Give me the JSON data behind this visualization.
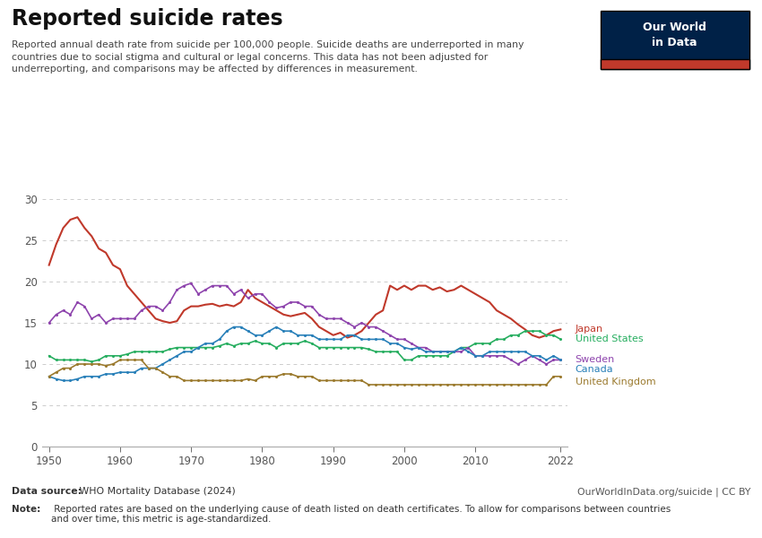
{
  "title": "Reported suicide rates",
  "subtitle": "Reported annual death rate from suicide per 100,000 people. Suicide deaths are underreported in many\ncountries due to social stigma and cultural or legal concerns. This data has not been adjusted for\nunderreporting, and comparisons may be affected by differences in measurement.",
  "note_bold": "Note:",
  "note_rest": " Reported rates are based on the underlying cause of death listed on death certificates. To allow for comparisons between countries\nand over time, this metric is age-standardized.",
  "source_bold": "Data source:",
  "source_rest": " WHO Mortality Database (2024)",
  "source_right": "OurWorldInData.org/suicide | CC BY",
  "ylim": [
    0,
    30
  ],
  "yticks": [
    0,
    5,
    10,
    15,
    20,
    25,
    30
  ],
  "xlim": [
    1949,
    2023
  ],
  "xticks": [
    1950,
    1960,
    1970,
    1980,
    1990,
    2000,
    2010,
    2022
  ],
  "background_color": "#ffffff",
  "grid_color": "#cccccc",
  "series": {
    "Japan": {
      "color": "#c0392b",
      "marker": false,
      "data": {
        "1950": 22.0,
        "1951": 24.5,
        "1952": 26.5,
        "1953": 27.5,
        "1954": 27.8,
        "1955": 26.5,
        "1956": 25.5,
        "1957": 24.0,
        "1958": 23.5,
        "1959": 22.0,
        "1960": 21.5,
        "1961": 19.5,
        "1962": 18.5,
        "1963": 17.5,
        "1964": 16.5,
        "1965": 15.5,
        "1966": 15.2,
        "1967": 15.0,
        "1968": 15.2,
        "1969": 16.5,
        "1970": 17.0,
        "1971": 17.0,
        "1972": 17.2,
        "1973": 17.3,
        "1974": 17.0,
        "1975": 17.2,
        "1976": 17.0,
        "1977": 17.5,
        "1978": 19.0,
        "1979": 18.0,
        "1980": 17.5,
        "1981": 17.0,
        "1982": 16.5,
        "1983": 16.0,
        "1984": 15.8,
        "1985": 16.0,
        "1986": 16.2,
        "1987": 15.5,
        "1988": 14.5,
        "1989": 14.0,
        "1990": 13.5,
        "1991": 13.8,
        "1992": 13.2,
        "1993": 13.5,
        "1994": 14.0,
        "1995": 15.0,
        "1996": 16.0,
        "1997": 16.5,
        "1998": 19.5,
        "1999": 19.0,
        "2000": 19.5,
        "2001": 19.0,
        "2002": 19.5,
        "2003": 19.5,
        "2004": 19.0,
        "2005": 19.3,
        "2006": 18.8,
        "2007": 19.0,
        "2008": 19.5,
        "2009": 19.0,
        "2010": 18.5,
        "2011": 18.0,
        "2012": 17.5,
        "2013": 16.5,
        "2014": 16.0,
        "2015": 15.5,
        "2016": 14.8,
        "2017": 14.2,
        "2018": 13.5,
        "2019": 13.2,
        "2020": 13.5,
        "2021": 14.0,
        "2022": 14.2
      }
    },
    "United States": {
      "color": "#27ae60",
      "marker": true,
      "data": {
        "1950": 11.0,
        "1951": 10.5,
        "1952": 10.5,
        "1953": 10.5,
        "1954": 10.5,
        "1955": 10.5,
        "1956": 10.3,
        "1957": 10.5,
        "1958": 11.0,
        "1959": 11.0,
        "1960": 11.0,
        "1961": 11.2,
        "1962": 11.5,
        "1963": 11.5,
        "1964": 11.5,
        "1965": 11.5,
        "1966": 11.5,
        "1967": 11.8,
        "1968": 12.0,
        "1969": 12.0,
        "1970": 12.0,
        "1971": 12.0,
        "1972": 12.0,
        "1973": 12.0,
        "1974": 12.2,
        "1975": 12.5,
        "1976": 12.2,
        "1977": 12.5,
        "1978": 12.5,
        "1979": 12.8,
        "1980": 12.5,
        "1981": 12.5,
        "1982": 12.0,
        "1983": 12.5,
        "1984": 12.5,
        "1985": 12.5,
        "1986": 12.8,
        "1987": 12.5,
        "1988": 12.0,
        "1989": 12.0,
        "1990": 12.0,
        "1991": 12.0,
        "1992": 12.0,
        "1993": 12.0,
        "1994": 12.0,
        "1995": 11.8,
        "1996": 11.5,
        "1997": 11.5,
        "1998": 11.5,
        "1999": 11.5,
        "2000": 10.5,
        "2001": 10.5,
        "2002": 11.0,
        "2003": 11.0,
        "2004": 11.0,
        "2005": 11.0,
        "2006": 11.0,
        "2007": 11.5,
        "2008": 12.0,
        "2009": 12.0,
        "2010": 12.5,
        "2011": 12.5,
        "2012": 12.5,
        "2013": 13.0,
        "2014": 13.0,
        "2015": 13.5,
        "2016": 13.5,
        "2017": 14.0,
        "2018": 14.0,
        "2019": 14.0,
        "2020": 13.5,
        "2021": 13.5,
        "2022": 13.0
      }
    },
    "Sweden": {
      "color": "#8e44ad",
      "marker": true,
      "data": {
        "1950": 15.0,
        "1951": 16.0,
        "1952": 16.5,
        "1953": 16.0,
        "1954": 17.5,
        "1955": 17.0,
        "1956": 15.5,
        "1957": 16.0,
        "1958": 15.0,
        "1959": 15.5,
        "1960": 15.5,
        "1961": 15.5,
        "1962": 15.5,
        "1963": 16.5,
        "1964": 17.0,
        "1965": 17.0,
        "1966": 16.5,
        "1967": 17.5,
        "1968": 19.0,
        "1969": 19.5,
        "1970": 19.8,
        "1971": 18.5,
        "1972": 19.0,
        "1973": 19.5,
        "1974": 19.5,
        "1975": 19.5,
        "1976": 18.5,
        "1977": 19.0,
        "1978": 18.0,
        "1979": 18.5,
        "1980": 18.5,
        "1981": 17.5,
        "1982": 16.8,
        "1983": 17.0,
        "1984": 17.5,
        "1985": 17.5,
        "1986": 17.0,
        "1987": 17.0,
        "1988": 16.0,
        "1989": 15.5,
        "1990": 15.5,
        "1991": 15.5,
        "1992": 15.0,
        "1993": 14.5,
        "1994": 15.0,
        "1995": 14.5,
        "1996": 14.5,
        "1997": 14.0,
        "1998": 13.5,
        "1999": 13.0,
        "2000": 13.0,
        "2001": 12.5,
        "2002": 12.0,
        "2003": 12.0,
        "2004": 11.5,
        "2005": 11.5,
        "2006": 11.5,
        "2007": 11.5,
        "2008": 11.5,
        "2009": 12.0,
        "2010": 11.0,
        "2011": 11.0,
        "2012": 11.0,
        "2013": 11.0,
        "2014": 11.0,
        "2015": 10.5,
        "2016": 10.0,
        "2017": 10.5,
        "2018": 11.0,
        "2019": 10.5,
        "2020": 10.0,
        "2021": 10.5,
        "2022": 10.5
      }
    },
    "Canada": {
      "color": "#2980b9",
      "marker": true,
      "data": {
        "1950": 8.5,
        "1951": 8.2,
        "1952": 8.0,
        "1953": 8.0,
        "1954": 8.2,
        "1955": 8.5,
        "1956": 8.5,
        "1957": 8.5,
        "1958": 8.8,
        "1959": 8.8,
        "1960": 9.0,
        "1961": 9.0,
        "1962": 9.0,
        "1963": 9.5,
        "1964": 9.5,
        "1965": 9.5,
        "1966": 10.0,
        "1967": 10.5,
        "1968": 11.0,
        "1969": 11.5,
        "1970": 11.5,
        "1971": 12.0,
        "1972": 12.5,
        "1973": 12.5,
        "1974": 13.0,
        "1975": 14.0,
        "1976": 14.5,
        "1977": 14.5,
        "1978": 14.0,
        "1979": 13.5,
        "1980": 13.5,
        "1981": 14.0,
        "1982": 14.5,
        "1983": 14.0,
        "1984": 14.0,
        "1985": 13.5,
        "1986": 13.5,
        "1987": 13.5,
        "1988": 13.0,
        "1989": 13.0,
        "1990": 13.0,
        "1991": 13.0,
        "1992": 13.5,
        "1993": 13.5,
        "1994": 13.0,
        "1995": 13.0,
        "1996": 13.0,
        "1997": 13.0,
        "1998": 12.5,
        "1999": 12.5,
        "2000": 12.0,
        "2001": 11.8,
        "2002": 12.0,
        "2003": 11.5,
        "2004": 11.5,
        "2005": 11.5,
        "2006": 11.5,
        "2007": 11.5,
        "2008": 12.0,
        "2009": 11.5,
        "2010": 11.0,
        "2011": 11.0,
        "2012": 11.5,
        "2013": 11.5,
        "2014": 11.5,
        "2015": 11.5,
        "2016": 11.5,
        "2017": 11.5,
        "2018": 11.0,
        "2019": 11.0,
        "2020": 10.5,
        "2021": 11.0,
        "2022": 10.5
      }
    },
    "United Kingdom": {
      "color": "#9b7a2e",
      "marker": true,
      "data": {
        "1950": 8.5,
        "1951": 9.0,
        "1952": 9.5,
        "1953": 9.5,
        "1954": 10.0,
        "1955": 10.0,
        "1956": 10.0,
        "1957": 10.0,
        "1958": 9.8,
        "1959": 10.0,
        "1960": 10.5,
        "1961": 10.5,
        "1962": 10.5,
        "1963": 10.5,
        "1964": 9.5,
        "1965": 9.5,
        "1966": 9.0,
        "1967": 8.5,
        "1968": 8.5,
        "1969": 8.0,
        "1970": 8.0,
        "1971": 8.0,
        "1972": 8.0,
        "1973": 8.0,
        "1974": 8.0,
        "1975": 8.0,
        "1976": 8.0,
        "1977": 8.0,
        "1978": 8.2,
        "1979": 8.0,
        "1980": 8.5,
        "1981": 8.5,
        "1982": 8.5,
        "1983": 8.8,
        "1984": 8.8,
        "1985": 8.5,
        "1986": 8.5,
        "1987": 8.5,
        "1988": 8.0,
        "1989": 8.0,
        "1990": 8.0,
        "1991": 8.0,
        "1992": 8.0,
        "1993": 8.0,
        "1994": 8.0,
        "1995": 7.5,
        "1996": 7.5,
        "1997": 7.5,
        "1998": 7.5,
        "1999": 7.5,
        "2000": 7.5,
        "2001": 7.5,
        "2002": 7.5,
        "2003": 7.5,
        "2004": 7.5,
        "2005": 7.5,
        "2006": 7.5,
        "2007": 7.5,
        "2008": 7.5,
        "2009": 7.5,
        "2010": 7.5,
        "2011": 7.5,
        "2012": 7.5,
        "2013": 7.5,
        "2014": 7.5,
        "2015": 7.5,
        "2016": 7.5,
        "2017": 7.5,
        "2018": 7.5,
        "2019": 7.5,
        "2020": 7.5,
        "2021": 8.5,
        "2022": 8.5
      }
    }
  },
  "label_positions": {
    "Japan": {
      "y": 14.2
    },
    "United States": {
      "y": 13.0
    },
    "Sweden": {
      "y": 10.5
    },
    "Canada": {
      "y": 9.3
    },
    "United Kingdom": {
      "y": 7.8
    }
  },
  "owid_box_color": "#002147",
  "owid_red_color": "#c0392b",
  "owid_text": "Our World\nin Data",
  "owid_text_color": "#ffffff"
}
